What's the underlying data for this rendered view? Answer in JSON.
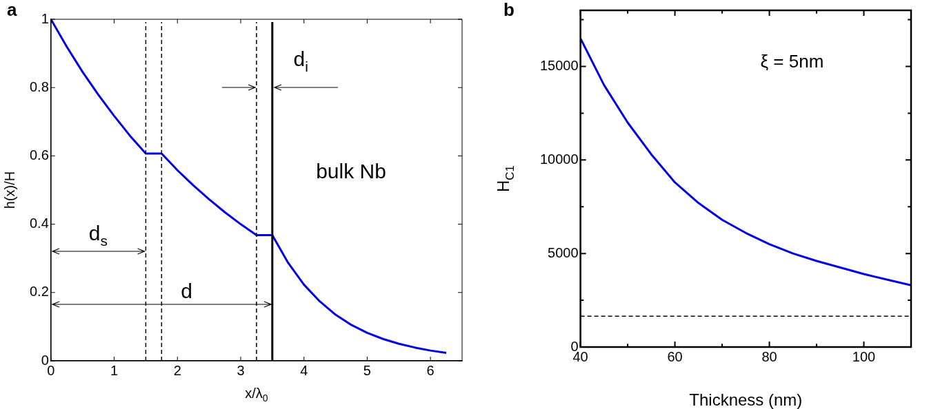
{
  "chart_data": [
    {
      "type": "line",
      "title": "a",
      "xlabel": "x/λ$_{0}$",
      "ylabel": "h(x)/H",
      "xlim": [
        0,
        6.5
      ],
      "xticks": [
        0,
        1,
        2,
        3,
        4,
        5,
        6
      ],
      "ylim": [
        0,
        1
      ],
      "yticks": [
        0,
        0.2,
        0.4,
        0.6,
        0.8,
        1
      ],
      "series": [
        {
          "color": "#0000ee",
          "x": [
            0,
            0.25,
            0.5,
            0.75,
            1,
            1.25,
            1.5,
            1.75,
            2,
            2.25,
            2.5,
            2.75,
            3,
            3.25,
            3.5,
            3.75,
            4,
            4.25,
            4.5,
            4.75,
            5,
            5.25,
            5.5,
            5.75,
            6,
            6.25
          ],
          "values": [
            1,
            0.92,
            0.846,
            0.779,
            0.717,
            0.659,
            0.607,
            0.607,
            0.558,
            0.514,
            0.473,
            0.435,
            0.4,
            0.368,
            0.368,
            0.287,
            0.223,
            0.174,
            0.135,
            0.105,
            0.082,
            0.064,
            0.05,
            0.039,
            0.03,
            0.023
          ]
        }
      ],
      "ref_lines": [
        {
          "axis": "x",
          "value": 1.5,
          "color": "#000000",
          "line_style": "dashed"
        },
        {
          "axis": "x",
          "value": 1.75,
          "color": "#000000",
          "line_style": "dashed"
        },
        {
          "axis": "x",
          "value": 3.25,
          "color": "#000000",
          "line_style": "dashed"
        },
        {
          "axis": "x",
          "value": 3.5,
          "color": "#000000",
          "line_style": "solid"
        }
      ],
      "annotations": [
        "d$_{s}$",
        "d",
        "d$_{i}$",
        "bulk Nb"
      ]
    },
    {
      "type": "line",
      "title": "b",
      "xlabel": "Thickness (nm)",
      "ylabel": "H$_{C1}$",
      "xlim": [
        40,
        110
      ],
      "xticks": [
        40,
        {
          "value": 50,
          "label": null
        },
        60,
        {
          "value": 70,
          "label": null
        },
        80,
        {
          "value": 90,
          "label": null
        },
        100
      ],
      "ylim": [
        0,
        18000
      ],
      "yticks": [
        0,
        {
          "value": 2500,
          "label": null
        },
        5000,
        {
          "value": 7500,
          "label": null
        },
        10000,
        {
          "value": 12500,
          "label": null
        },
        15000,
        {
          "value": 17500,
          "label": null
        }
      ],
      "series": [
        {
          "color": "#0000ee",
          "x": [
            40,
            45,
            50,
            55,
            60,
            65,
            70,
            75,
            80,
            85,
            90,
            95,
            100,
            105,
            110
          ],
          "values": [
            16500,
            14000,
            12000,
            10300,
            8800,
            7700,
            6800,
            6100,
            5500,
            5000,
            4600,
            4250,
            3900,
            3600,
            3300
          ]
        }
      ],
      "ref_lines": [
        {
          "axis": "y",
          "value": 1650,
          "color": "#000000",
          "line_style": "dashed"
        }
      ],
      "annotations": [
        "ξ = 5nm"
      ]
    }
  ]
}
